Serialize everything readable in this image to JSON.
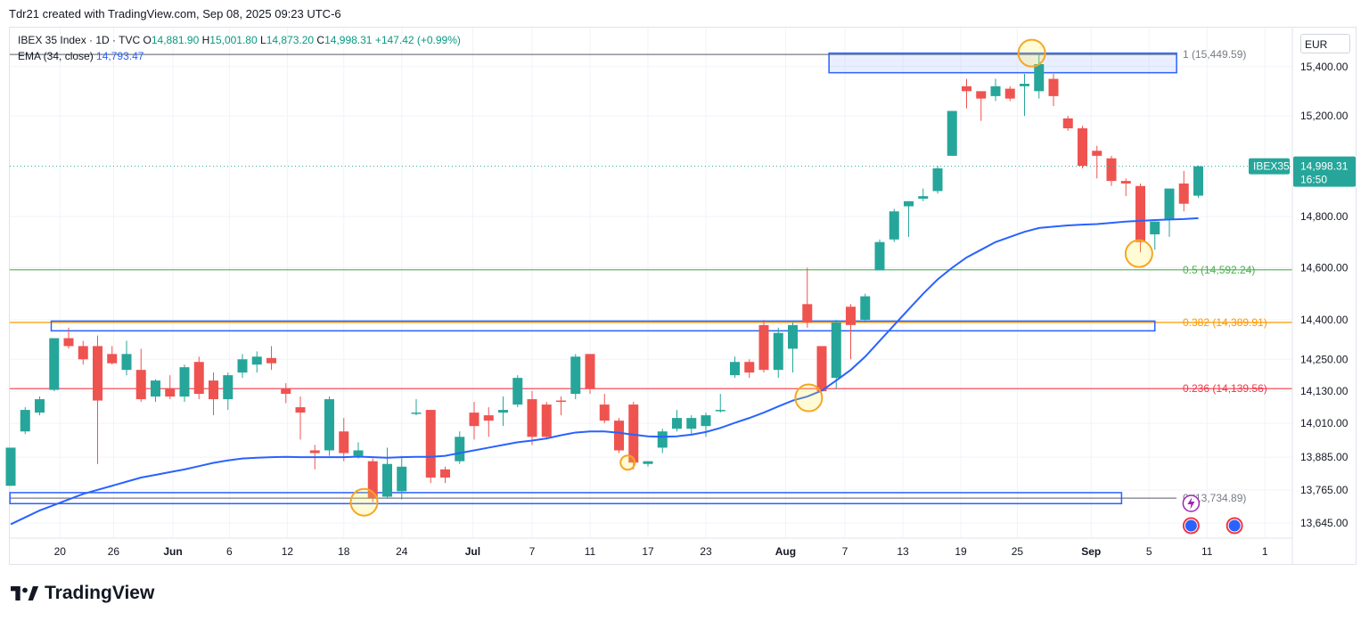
{
  "header": {
    "text": "Tdr21 created with TradingView.com, Sep 08, 2025 09:23 UTC-6"
  },
  "legend": {
    "symbol": "IBEX 35 Index · 1D · TVC",
    "o_label": "O",
    "o_value": "14,881.90",
    "h_label": "H",
    "h_value": "15,001.80",
    "l_label": "L",
    "l_value": "14,873.20",
    "c_label": "C",
    "c_value": "14,998.31",
    "change": "+147.42 (+0.99%)",
    "ema_label": "EMA (34, close)",
    "ema_value": "14,793.47"
  },
  "currency": "EUR",
  "brand": {
    "name": "TradingView"
  },
  "colors": {
    "up": "#26a69a",
    "down": "#ef5350",
    "ema": "#2962ff",
    "box": "#2962ff",
    "fib1": "#787b86",
    "fib05": "#4caf50",
    "fib0382": "#ff9800",
    "fib0236": "#f23645",
    "fib0": "#787b86",
    "marker": "#f5a623"
  },
  "chart_data": {
    "type": "candlestick",
    "x_ticks": [
      "20",
      "26",
      "Jun",
      "6",
      "12",
      "18",
      "24",
      "Jul",
      "7",
      "11",
      "17",
      "23",
      "Aug",
      "7",
      "13",
      "19",
      "25",
      "Sep",
      "5",
      "11",
      "1"
    ],
    "y_ticks": [
      "15,400.00",
      "15,200.00",
      "14,800.00",
      "14,600.00",
      "14,400.00",
      "14,250.00",
      "14,130.00",
      "14,010.00",
      "13,885.00",
      "13,765.00",
      "13,645.00"
    ],
    "y_tick_values": [
      15400,
      15200,
      14800,
      14600,
      14400,
      14250,
      14130,
      14010,
      13885,
      13765,
      13645
    ],
    "price_scale": "log",
    "ylim": [
      13590,
      15560
    ],
    "last_price": {
      "label": "IBEX35",
      "value": "14,998.31",
      "countdown": "16:50"
    },
    "fib_levels": [
      {
        "label": "1 (15,449.59)",
        "value": 15449.59
      },
      {
        "label": "0.5 (14,592.24)",
        "value": 14592.24
      },
      {
        "label": "0.382 (14,389.91)",
        "value": 14389.91
      },
      {
        "label": "0.236 (14,139.56)",
        "value": 14139.56
      },
      {
        "label": "0 (13,734.89)",
        "value": 13734.89
      }
    ],
    "candles": [
      {
        "date": "2025-05-15",
        "o": 13780,
        "h": 13920,
        "l": 13780,
        "c": 13920
      },
      {
        "date": "2025-05-16",
        "o": 13980,
        "h": 14070,
        "l": 13970,
        "c": 14060
      },
      {
        "date": "2025-05-19",
        "o": 14050,
        "h": 14110,
        "l": 14040,
        "c": 14100
      },
      {
        "date": "2025-05-20",
        "o": 14135,
        "h": 14330,
        "l": 14130,
        "c": 14330
      },
      {
        "date": "2025-05-21",
        "o": 14330,
        "h": 14370,
        "l": 14290,
        "c": 14300
      },
      {
        "date": "2025-05-22",
        "o": 14300,
        "h": 14320,
        "l": 14230,
        "c": 14250
      },
      {
        "date": "2025-05-23",
        "o": 14300,
        "h": 14340,
        "l": 13860,
        "c": 14095
      },
      {
        "date": "2025-05-26",
        "o": 14270,
        "h": 14300,
        "l": 14230,
        "c": 14235
      },
      {
        "date": "2025-05-27",
        "o": 14210,
        "h": 14320,
        "l": 14190,
        "c": 14270
      },
      {
        "date": "2025-05-28",
        "o": 14210,
        "h": 14290,
        "l": 14090,
        "c": 14100
      },
      {
        "date": "2025-05-29",
        "o": 14110,
        "h": 14175,
        "l": 14090,
        "c": 14170
      },
      {
        "date": "2025-05-30",
        "o": 14140,
        "h": 14190,
        "l": 14100,
        "c": 14110
      },
      {
        "date": "2025-06-02",
        "o": 14110,
        "h": 14230,
        "l": 14090,
        "c": 14220
      },
      {
        "date": "2025-06-03",
        "o": 14240,
        "h": 14260,
        "l": 14100,
        "c": 14120
      },
      {
        "date": "2025-06-04",
        "o": 14170,
        "h": 14200,
        "l": 14040,
        "c": 14100
      },
      {
        "date": "2025-06-05",
        "o": 14100,
        "h": 14200,
        "l": 14060,
        "c": 14190
      },
      {
        "date": "2025-06-06",
        "o": 14200,
        "h": 14270,
        "l": 14180,
        "c": 14250
      },
      {
        "date": "2025-06-09",
        "o": 14230,
        "h": 14280,
        "l": 14200,
        "c": 14260
      },
      {
        "date": "2025-06-10",
        "o": 14255,
        "h": 14300,
        "l": 14210,
        "c": 14235
      },
      {
        "date": "2025-06-11",
        "o": 14140,
        "h": 14160,
        "l": 14085,
        "c": 14120
      },
      {
        "date": "2025-06-12",
        "o": 14070,
        "h": 14110,
        "l": 13950,
        "c": 14050
      },
      {
        "date": "2025-06-13",
        "o": 13910,
        "h": 13930,
        "l": 13840,
        "c": 13900
      },
      {
        "date": "2025-06-16",
        "o": 13910,
        "h": 14110,
        "l": 13890,
        "c": 14100
      },
      {
        "date": "2025-06-17",
        "o": 13980,
        "h": 14030,
        "l": 13870,
        "c": 13900
      },
      {
        "date": "2025-06-18",
        "o": 13890,
        "h": 13940,
        "l": 13880,
        "c": 13910
      },
      {
        "date": "2025-06-19",
        "o": 13870,
        "h": 13880,
        "l": 13720,
        "c": 13735
      },
      {
        "date": "2025-06-20",
        "o": 13740,
        "h": 13920,
        "l": 13735,
        "c": 13860
      },
      {
        "date": "2025-06-23",
        "o": 13760,
        "h": 13890,
        "l": 13730,
        "c": 13850
      },
      {
        "date": "2025-06-24",
        "o": 14050,
        "h": 14100,
        "l": 14040,
        "c": 14050
      },
      {
        "date": "2025-06-25",
        "o": 14060,
        "h": 14060,
        "l": 13790,
        "c": 13810
      },
      {
        "date": "2025-06-26",
        "o": 13840,
        "h": 13850,
        "l": 13790,
        "c": 13810
      },
      {
        "date": "2025-06-27",
        "o": 13870,
        "h": 13980,
        "l": 13860,
        "c": 13960
      },
      {
        "date": "2025-06-30",
        "o": 14050,
        "h": 14090,
        "l": 13950,
        "c": 14000
      },
      {
        "date": "2025-07-01",
        "o": 14040,
        "h": 14070,
        "l": 13960,
        "c": 14020
      },
      {
        "date": "2025-07-02",
        "o": 14050,
        "h": 14110,
        "l": 14000,
        "c": 14060
      },
      {
        "date": "2025-07-03",
        "o": 14080,
        "h": 14190,
        "l": 14070,
        "c": 14180
      },
      {
        "date": "2025-07-04",
        "o": 14100,
        "h": 14130,
        "l": 13930,
        "c": 13960
      },
      {
        "date": "2025-07-07",
        "o": 14080,
        "h": 14090,
        "l": 13950,
        "c": 13960
      },
      {
        "date": "2025-07-08",
        "o": 14095,
        "h": 14110,
        "l": 14040,
        "c": 14090
      },
      {
        "date": "2025-07-09",
        "o": 14120,
        "h": 14270,
        "l": 14100,
        "c": 14260
      },
      {
        "date": "2025-07-10",
        "o": 14270,
        "h": 14270,
        "l": 14120,
        "c": 14140
      },
      {
        "date": "2025-07-11",
        "o": 14080,
        "h": 14120,
        "l": 14010,
        "c": 14020
      },
      {
        "date": "2025-07-14",
        "o": 14020,
        "h": 14030,
        "l": 13900,
        "c": 13910
      },
      {
        "date": "2025-07-15",
        "o": 14080,
        "h": 14090,
        "l": 13840,
        "c": 13865
      },
      {
        "date": "2025-07-16",
        "o": 13860,
        "h": 13870,
        "l": 13850,
        "c": 13870
      },
      {
        "date": "2025-07-17",
        "o": 13920,
        "h": 13990,
        "l": 13900,
        "c": 13980
      },
      {
        "date": "2025-07-18",
        "o": 13990,
        "h": 14060,
        "l": 13980,
        "c": 14030
      },
      {
        "date": "2025-07-21",
        "o": 13990,
        "h": 14040,
        "l": 13970,
        "c": 14030
      },
      {
        "date": "2025-07-22",
        "o": 14000,
        "h": 14050,
        "l": 13960,
        "c": 14040
      },
      {
        "date": "2025-07-23",
        "o": 14060,
        "h": 14120,
        "l": 14050,
        "c": 14060
      },
      {
        "date": "2025-07-24",
        "o": 14190,
        "h": 14260,
        "l": 14180,
        "c": 14240
      },
      {
        "date": "2025-07-25",
        "o": 14240,
        "h": 14250,
        "l": 14180,
        "c": 14200
      },
      {
        "date": "2025-07-28",
        "o": 14380,
        "h": 14400,
        "l": 14200,
        "c": 14210
      },
      {
        "date": "2025-07-29",
        "o": 14210,
        "h": 14370,
        "l": 14180,
        "c": 14350
      },
      {
        "date": "2025-07-30",
        "o": 14290,
        "h": 14390,
        "l": 14200,
        "c": 14380
      },
      {
        "date": "2025-07-31",
        "o": 14460,
        "h": 14600,
        "l": 14370,
        "c": 14390
      },
      {
        "date": "2025-08-01",
        "o": 14300,
        "h": 14300,
        "l": 14130,
        "c": 14130
      },
      {
        "date": "2025-08-04",
        "o": 14180,
        "h": 14400,
        "l": 14140,
        "c": 14390
      },
      {
        "date": "2025-08-05",
        "o": 14450,
        "h": 14460,
        "l": 14250,
        "c": 14380
      },
      {
        "date": "2025-08-06",
        "o": 14400,
        "h": 14500,
        "l": 14390,
        "c": 14490
      },
      {
        "date": "2025-08-07",
        "o": 14590,
        "h": 14710,
        "l": 14590,
        "c": 14700
      },
      {
        "date": "2025-08-08",
        "o": 14710,
        "h": 14830,
        "l": 14700,
        "c": 14820
      },
      {
        "date": "2025-08-11",
        "o": 14840,
        "h": 14860,
        "l": 14720,
        "c": 14860
      },
      {
        "date": "2025-08-12",
        "o": 14870,
        "h": 14910,
        "l": 14860,
        "c": 14880
      },
      {
        "date": "2025-08-13",
        "o": 14900,
        "h": 15000,
        "l": 14890,
        "c": 14990
      },
      {
        "date": "2025-08-14",
        "o": 15040,
        "h": 15220,
        "l": 15040,
        "c": 15220
      },
      {
        "date": "2025-08-15",
        "o": 15320,
        "h": 15350,
        "l": 15230,
        "c": 15300
      },
      {
        "date": "2025-08-18",
        "o": 15300,
        "h": 15290,
        "l": 15180,
        "c": 15270
      },
      {
        "date": "2025-08-19",
        "o": 15280,
        "h": 15350,
        "l": 15260,
        "c": 15320
      },
      {
        "date": "2025-08-20",
        "o": 15310,
        "h": 15320,
        "l": 15260,
        "c": 15270
      },
      {
        "date": "2025-08-21",
        "o": 15320,
        "h": 15370,
        "l": 15200,
        "c": 15330
      },
      {
        "date": "2025-08-22",
        "o": 15300,
        "h": 15450,
        "l": 15270,
        "c": 15410
      },
      {
        "date": "2025-08-25",
        "o": 15350,
        "h": 15370,
        "l": 15240,
        "c": 15280
      },
      {
        "date": "2025-08-26",
        "o": 15190,
        "h": 15200,
        "l": 15140,
        "c": 15150
      },
      {
        "date": "2025-08-27",
        "o": 15150,
        "h": 15160,
        "l": 14990,
        "c": 15000
      },
      {
        "date": "2025-08-28",
        "o": 15060,
        "h": 15080,
        "l": 14950,
        "c": 15040
      },
      {
        "date": "2025-08-29",
        "o": 15030,
        "h": 15040,
        "l": 14920,
        "c": 14940
      },
      {
        "date": "2025-09-01",
        "o": 14940,
        "h": 14950,
        "l": 14880,
        "c": 14930
      },
      {
        "date": "2025-09-02",
        "o": 14920,
        "h": 14930,
        "l": 14660,
        "c": 14700
      },
      {
        "date": "2025-09-03",
        "o": 14730,
        "h": 14770,
        "l": 14670,
        "c": 14780
      },
      {
        "date": "2025-09-04",
        "o": 14790,
        "h": 14910,
        "l": 14720,
        "c": 14910
      },
      {
        "date": "2025-09-05",
        "o": 14930,
        "h": 14980,
        "l": 14820,
        "c": 14850
      },
      {
        "date": "2025-09-08",
        "o": 14881.9,
        "h": 15001.8,
        "l": 14873.2,
        "c": 14998.31
      }
    ],
    "ema": [
      13640,
      13665,
      13690,
      13710,
      13730,
      13750,
      13765,
      13780,
      13795,
      13810,
      13820,
      13830,
      13840,
      13852,
      13864,
      13873,
      13880,
      13883,
      13885,
      13886,
      13885,
      13885,
      13885,
      13885,
      13887,
      13885,
      13883,
      13885,
      13886,
      13886,
      13890,
      13900,
      13910,
      13920,
      13930,
      13940,
      13946,
      13954,
      13966,
      13976,
      13980,
      13980,
      13975,
      13968,
      13962,
      13960,
      13962,
      13968,
      13978,
      13993,
      14012,
      14030,
      14050,
      14073,
      14095,
      14110,
      14132,
      14170,
      14210,
      14260,
      14320,
      14380,
      14440,
      14500,
      14555,
      14600,
      14640,
      14670,
      14700,
      14720,
      14740,
      14755,
      14760,
      14765,
      14768,
      14770,
      14775,
      14780,
      14783,
      14786,
      14788,
      14790,
      14793.47
    ]
  }
}
